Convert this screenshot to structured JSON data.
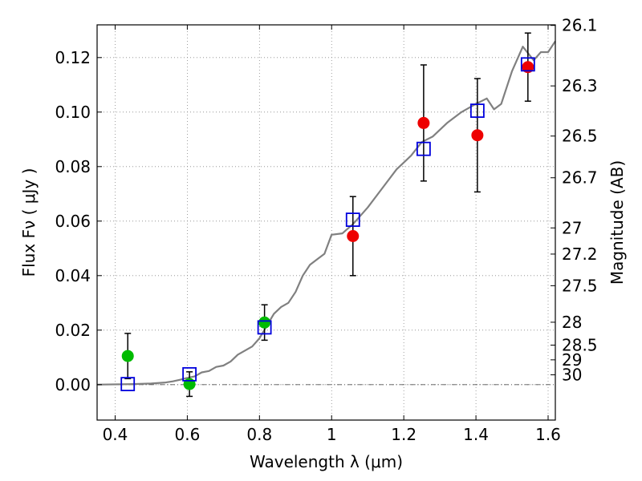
{
  "chart_data": {
    "type": "scatter",
    "xlabel": "Wavelength  λ (μm)",
    "ylabel": "Flux  Fν  ( μJy )",
    "ylabel_right": "Magnitude (AB)",
    "xlim": [
      0.35,
      1.62
    ],
    "ylim": [
      -0.013,
      0.132
    ],
    "grid": true,
    "x_ticks": [
      0.4,
      0.6,
      0.8,
      1.0,
      1.2,
      1.4,
      1.6
    ],
    "x_tick_labels": [
      "0.4",
      "0.6",
      "0.8",
      "1",
      "1.2",
      "1.4",
      "1.6"
    ],
    "y_ticks": [
      0.0,
      0.02,
      0.04,
      0.06,
      0.08,
      0.1,
      0.12
    ],
    "y_tick_labels": [
      "0.00",
      "0.02",
      "0.04",
      "0.06",
      "0.08",
      "0.10",
      "0.12"
    ],
    "mag_ticks": [
      {
        "label": "26.1",
        "flux": 0.1318
      },
      {
        "label": "26.3",
        "flux": 0.1096
      },
      {
        "label": "26.5",
        "flux": 0.0912
      },
      {
        "label": "26.7",
        "flux": 0.0759
      },
      {
        "label": "27",
        "flux": 0.0575
      },
      {
        "label": "27.2",
        "flux": 0.0479
      },
      {
        "label": "27.5",
        "flux": 0.0363
      },
      {
        "label": "28",
        "flux": 0.0229
      },
      {
        "label": "28.5",
        "flux": 0.0145
      },
      {
        "label": "29",
        "flux": 0.0091
      },
      {
        "label": "30",
        "flux": 0.0036
      }
    ],
    "colors": {
      "observed_green": "#00bb00",
      "observed_red": "#ee0000",
      "model": "#0000dd",
      "template": "#808080",
      "errorbar": "#000000",
      "zero_line": "#555555",
      "grid": "#888888"
    },
    "series": [
      {
        "marker": "circle",
        "color": "#00bb00",
        "points": [
          {
            "x": 0.435,
            "y": 0.0105,
            "err": 0.0083
          },
          {
            "x": 0.606,
            "y": 0.0002,
            "err": 0.0045
          },
          {
            "x": 0.814,
            "y": 0.0228,
            "err": 0.0065
          }
        ]
      },
      {
        "marker": "circle",
        "color": "#ee0000",
        "points": [
          {
            "x": 1.059,
            "y": 0.0545,
            "err": 0.0145
          },
          {
            "x": 1.255,
            "y": 0.096,
            "err": 0.0213
          },
          {
            "x": 1.404,
            "y": 0.0915,
            "err": 0.0208
          },
          {
            "x": 1.544,
            "y": 0.1165,
            "err": 0.0125
          }
        ]
      },
      {
        "marker": "open-square",
        "color": "#0000dd",
        "points": [
          {
            "x": 0.435,
            "y": 0.0002
          },
          {
            "x": 0.606,
            "y": 0.0038
          },
          {
            "x": 0.814,
            "y": 0.021
          },
          {
            "x": 1.059,
            "y": 0.0605
          },
          {
            "x": 1.255,
            "y": 0.0865
          },
          {
            "x": 1.404,
            "y": 0.1005
          },
          {
            "x": 1.544,
            "y": 0.1175
          }
        ]
      },
      {
        "marker": "line",
        "color": "#808080",
        "points": [
          {
            "x": 0.35,
            "y": 0.0
          },
          {
            "x": 0.45,
            "y": 0.0002
          },
          {
            "x": 0.5,
            "y": 0.0004
          },
          {
            "x": 0.54,
            "y": 0.0008
          },
          {
            "x": 0.56,
            "y": 0.0012
          },
          {
            "x": 0.58,
            "y": 0.0018
          },
          {
            "x": 0.6,
            "y": 0.0025
          },
          {
            "x": 0.62,
            "y": 0.003
          },
          {
            "x": 0.64,
            "y": 0.0045
          },
          {
            "x": 0.66,
            "y": 0.005
          },
          {
            "x": 0.68,
            "y": 0.0065
          },
          {
            "x": 0.7,
            "y": 0.007
          },
          {
            "x": 0.72,
            "y": 0.0085
          },
          {
            "x": 0.74,
            "y": 0.011
          },
          {
            "x": 0.76,
            "y": 0.0125
          },
          {
            "x": 0.78,
            "y": 0.014
          },
          {
            "x": 0.8,
            "y": 0.017
          },
          {
            "x": 0.82,
            "y": 0.0215
          },
          {
            "x": 0.84,
            "y": 0.026
          },
          {
            "x": 0.86,
            "y": 0.0285
          },
          {
            "x": 0.88,
            "y": 0.03
          },
          {
            "x": 0.9,
            "y": 0.034
          },
          {
            "x": 0.92,
            "y": 0.04
          },
          {
            "x": 0.94,
            "y": 0.044
          },
          {
            "x": 0.96,
            "y": 0.046
          },
          {
            "x": 0.98,
            "y": 0.048
          },
          {
            "x": 1.0,
            "y": 0.055
          },
          {
            "x": 1.03,
            "y": 0.0555
          },
          {
            "x": 1.06,
            "y": 0.059
          },
          {
            "x": 1.1,
            "y": 0.065
          },
          {
            "x": 1.14,
            "y": 0.072
          },
          {
            "x": 1.18,
            "y": 0.079
          },
          {
            "x": 1.22,
            "y": 0.084
          },
          {
            "x": 1.25,
            "y": 0.089
          },
          {
            "x": 1.28,
            "y": 0.091
          },
          {
            "x": 1.32,
            "y": 0.096
          },
          {
            "x": 1.36,
            "y": 0.1
          },
          {
            "x": 1.4,
            "y": 0.103
          },
          {
            "x": 1.43,
            "y": 0.105
          },
          {
            "x": 1.45,
            "y": 0.101
          },
          {
            "x": 1.47,
            "y": 0.103
          },
          {
            "x": 1.5,
            "y": 0.115
          },
          {
            "x": 1.53,
            "y": 0.124
          },
          {
            "x": 1.56,
            "y": 0.119
          },
          {
            "x": 1.58,
            "y": 0.122
          },
          {
            "x": 1.6,
            "y": 0.122
          },
          {
            "x": 1.62,
            "y": 0.126
          }
        ]
      }
    ]
  }
}
